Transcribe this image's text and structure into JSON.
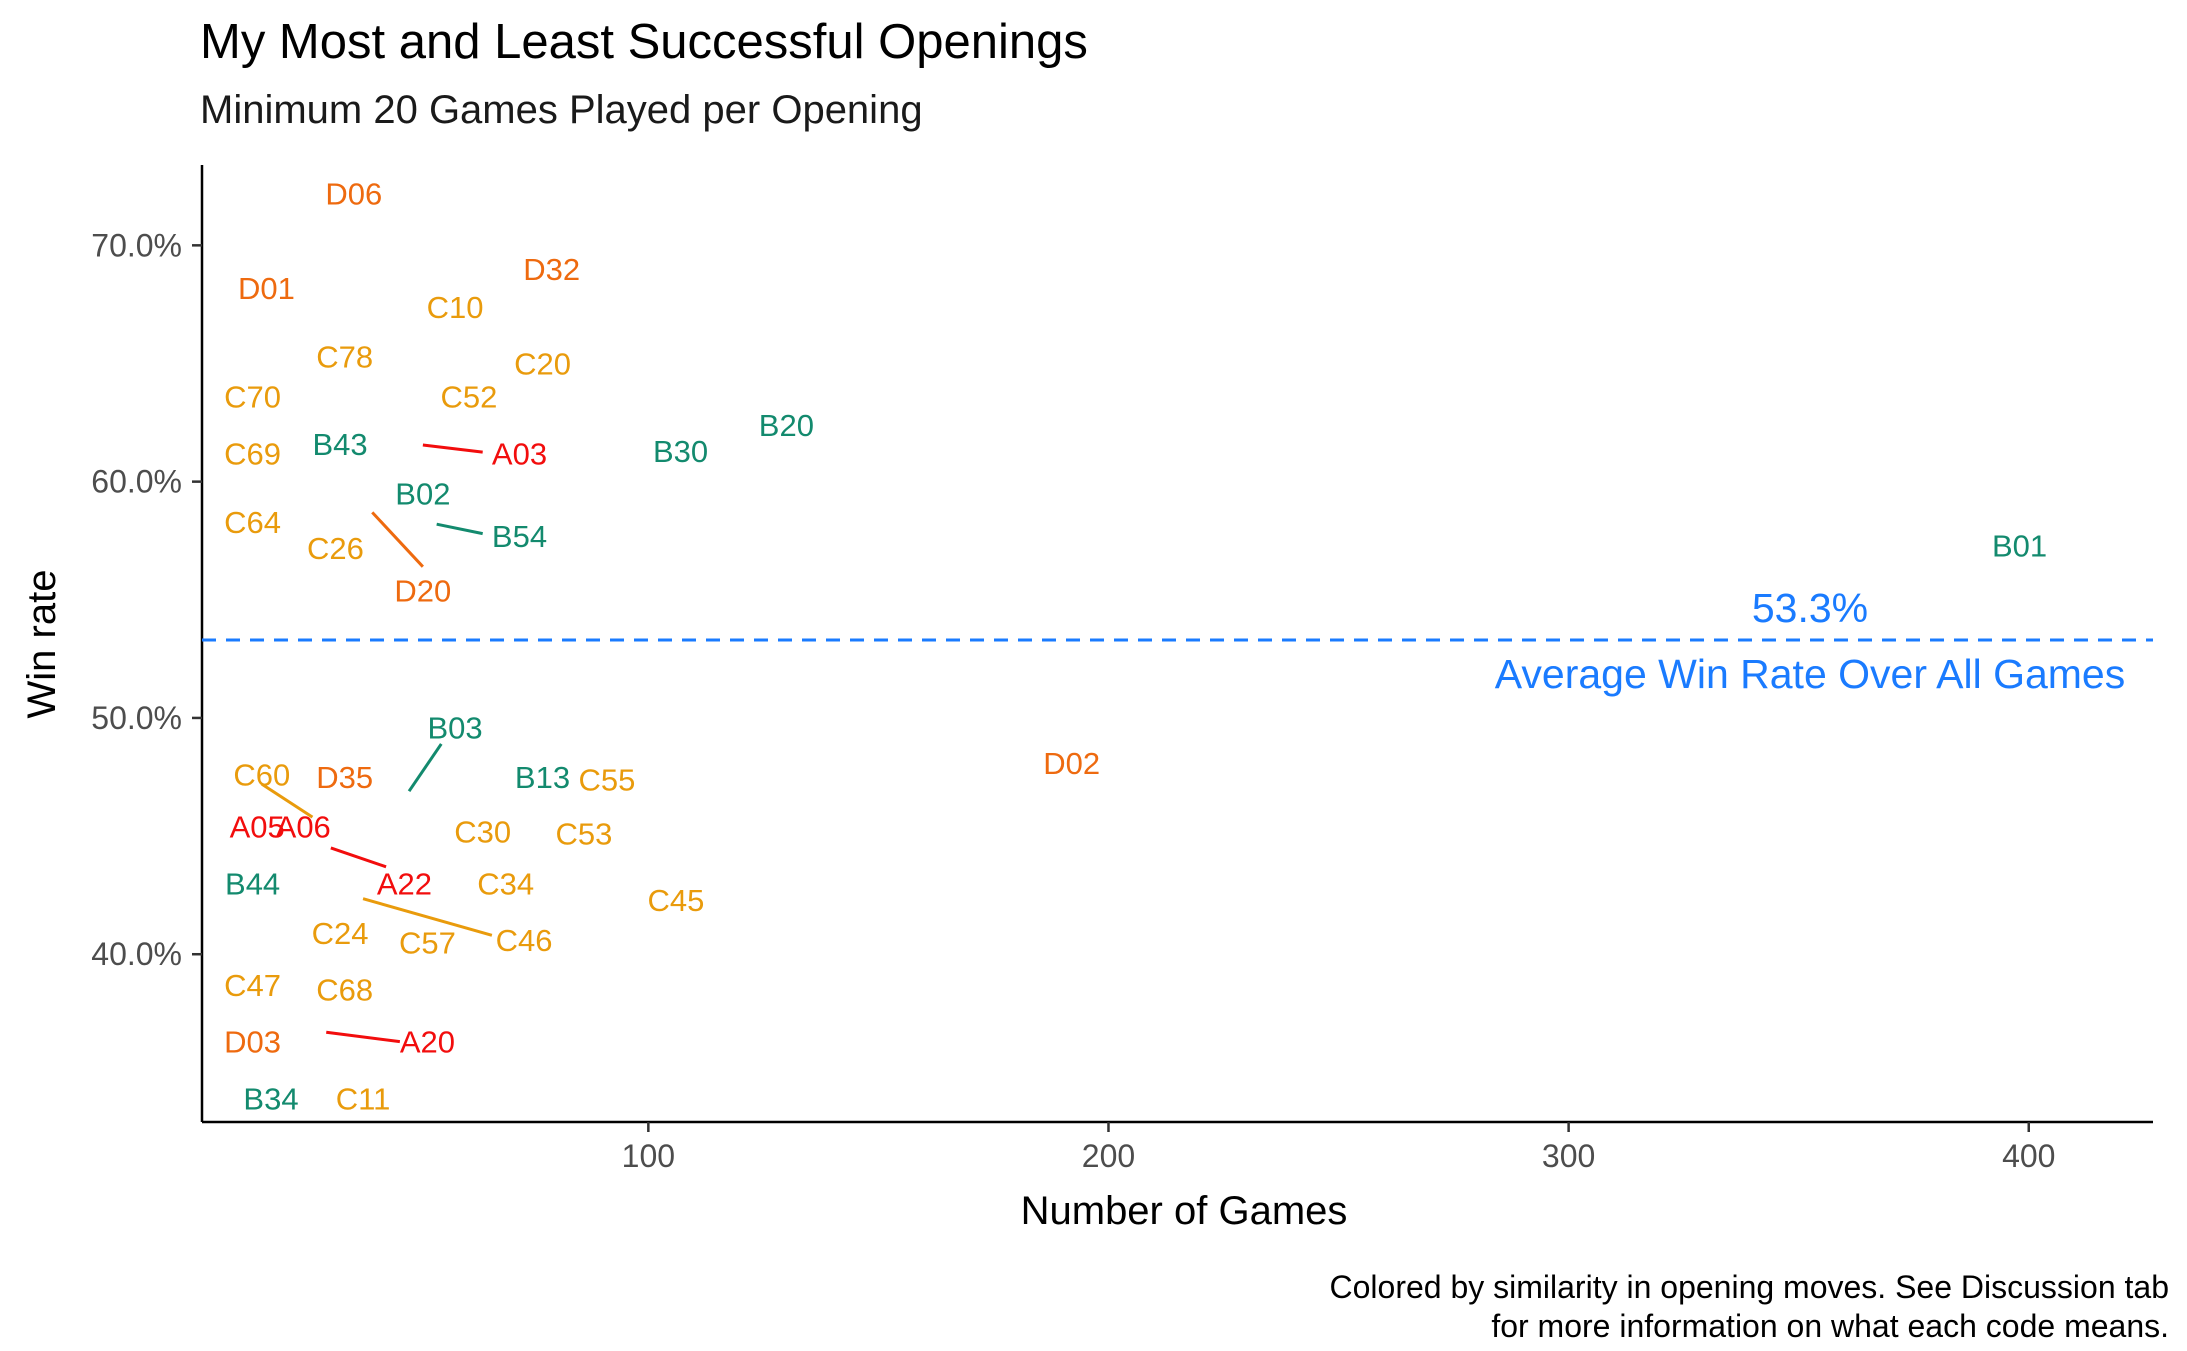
{
  "chart_data": {
    "type": "scatter",
    "title": "My Most and Least Successful Openings",
    "subtitle": "Minimum 20 Games Played per Opening",
    "xlabel": "Number of Games",
    "ylabel": "Win rate",
    "caption_line1": "Colored by similarity in opening moves. See Discussion tab",
    "caption_line2": "for more information on what each code means.",
    "xlim": [
      3,
      427
    ],
    "ylim": [
      0.329,
      0.734
    ],
    "x_ticks": [
      {
        "value": 100,
        "label": "100"
      },
      {
        "value": 200,
        "label": "200"
      },
      {
        "value": 300,
        "label": "300"
      },
      {
        "value": 400,
        "label": "400"
      }
    ],
    "y_ticks": [
      {
        "value": 0.4,
        "label": "40.0%"
      },
      {
        "value": 0.5,
        "label": "50.0%"
      },
      {
        "value": 0.6,
        "label": "60.0%"
      },
      {
        "value": 0.7,
        "label": "70.0%"
      }
    ],
    "grid": false,
    "legend": "none",
    "reference_line": {
      "y": 0.533,
      "value_label": "53.3%",
      "label": "Average Win Rate Over All Games",
      "color": "#1a7bff",
      "style": "dashed"
    },
    "colors": {
      "A": "#f20d0d",
      "B": "#138a6e",
      "C": "#e99b0c",
      "D": "#ee6a0f"
    },
    "points": [
      {
        "code": "D06",
        "group": "D",
        "x": 36,
        "y": 0.722
      },
      {
        "code": "D01",
        "group": "D",
        "x": 17,
        "y": 0.682
      },
      {
        "code": "D32",
        "group": "D",
        "x": 79,
        "y": 0.69
      },
      {
        "code": "C10",
        "group": "C",
        "x": 58,
        "y": 0.674
      },
      {
        "code": "C78",
        "group": "C",
        "x": 34,
        "y": 0.653
      },
      {
        "code": "C20",
        "group": "C",
        "x": 77,
        "y": 0.65
      },
      {
        "code": "C70",
        "group": "C",
        "x": 14,
        "y": 0.636
      },
      {
        "code": "C52",
        "group": "C",
        "x": 61,
        "y": 0.636
      },
      {
        "code": "B20",
        "group": "B",
        "x": 130,
        "y": 0.624
      },
      {
        "code": "C69",
        "group": "C",
        "x": 14,
        "y": 0.612,
        "lx": 14,
        "ly": 0.612
      },
      {
        "code": "B43",
        "group": "B",
        "x": 33,
        "y": 0.616
      },
      {
        "code": "A03",
        "group": "A",
        "x": 51,
        "y": 0.615,
        "lx": 72,
        "ly": 0.612
      },
      {
        "code": "B30",
        "group": "B",
        "x": 107,
        "y": 0.613
      },
      {
        "code": "B02",
        "group": "B",
        "x": 51,
        "y": 0.595
      },
      {
        "code": "C64",
        "group": "C",
        "x": 14,
        "y": 0.583
      },
      {
        "code": "B54",
        "group": "B",
        "x": 54,
        "y": 0.582,
        "lx": 72,
        "ly": 0.577
      },
      {
        "code": "C26",
        "group": "C",
        "x": 32,
        "y": 0.572
      },
      {
        "code": "B01",
        "group": "B",
        "x": 398,
        "y": 0.573
      },
      {
        "code": "D20",
        "group": "D",
        "x": 40,
        "y": 0.587,
        "lx": 51,
        "ly": 0.554
      },
      {
        "code": "B03",
        "group": "B",
        "x": 48,
        "y": 0.469,
        "lx": 58,
        "ly": 0.496
      },
      {
        "code": "D02",
        "group": "D",
        "x": 192,
        "y": 0.481
      },
      {
        "code": "C60",
        "group": "C",
        "x": 16,
        "y": 0.472,
        "lx": 16,
        "ly": 0.476
      },
      {
        "code": "D35",
        "group": "D",
        "x": 34,
        "y": 0.475
      },
      {
        "code": "B13",
        "group": "B",
        "x": 77,
        "y": 0.475
      },
      {
        "code": "C55",
        "group": "C",
        "x": 91,
        "y": 0.474
      },
      {
        "code": "A05",
        "group": "A",
        "x": 15,
        "y": 0.454
      },
      {
        "code": "A06",
        "group": "A",
        "x": 34,
        "y": 0.454,
        "lx": 25,
        "ly": 0.454
      },
      {
        "code": "C30",
        "group": "C",
        "x": 64,
        "y": 0.452
      },
      {
        "code": "C53",
        "group": "C",
        "x": 86,
        "y": 0.451
      },
      {
        "code": "B44",
        "group": "B",
        "x": 14,
        "y": 0.43
      },
      {
        "code": "A22",
        "group": "A",
        "x": 38,
        "y": 0.444,
        "lx": 47,
        "ly": 0.43
      },
      {
        "code": "C34",
        "group": "C",
        "x": 69,
        "y": 0.43
      },
      {
        "code": "C45",
        "group": "C",
        "x": 106,
        "y": 0.423
      },
      {
        "code": "C24",
        "group": "C",
        "x": 33,
        "y": 0.409
      },
      {
        "code": "C57",
        "group": "C",
        "x": 40,
        "y": 0.423,
        "lx": 52,
        "ly": 0.405
      },
      {
        "code": "C46",
        "group": "C",
        "x": 70,
        "y": 0.405,
        "lx": 73,
        "ly": 0.406
      },
      {
        "code": "C47",
        "group": "C",
        "x": 14,
        "y": 0.387
      },
      {
        "code": "C68",
        "group": "C",
        "x": 34,
        "y": 0.385
      },
      {
        "code": "D03",
        "group": "D",
        "x": 14,
        "y": 0.363
      },
      {
        "code": "A20",
        "group": "A",
        "x": 29,
        "y": 0.367,
        "lx": 52,
        "ly": 0.363
      },
      {
        "code": "B34",
        "group": "B",
        "x": 18,
        "y": 0.339
      },
      {
        "code": "C11",
        "group": "C",
        "x": 38,
        "y": 0.339
      }
    ],
    "segments": [
      {
        "group": "A",
        "x1": 51,
        "y1": 0.6155,
        "x2": 64,
        "y2": 0.6125
      },
      {
        "group": "B",
        "x1": 54,
        "y1": 0.582,
        "x2": 64,
        "y2": 0.578
      },
      {
        "group": "D",
        "x1": 40,
        "y1": 0.587,
        "x2": 51,
        "y2": 0.564
      },
      {
        "group": "B",
        "x1": 48,
        "y1": 0.469,
        "x2": 55,
        "y2": 0.489
      },
      {
        "group": "C",
        "x1": 16,
        "y1": 0.472,
        "x2": 27,
        "y2": 0.458
      },
      {
        "group": "A",
        "x1": 31,
        "y1": 0.445,
        "x2": 43,
        "y2": 0.437
      },
      {
        "group": "C",
        "x1": 38,
        "y1": 0.4235,
        "x2": 66,
        "y2": 0.408
      },
      {
        "group": "A",
        "x1": 30,
        "y1": 0.367,
        "x2": 46,
        "y2": 0.363
      }
    ]
  }
}
